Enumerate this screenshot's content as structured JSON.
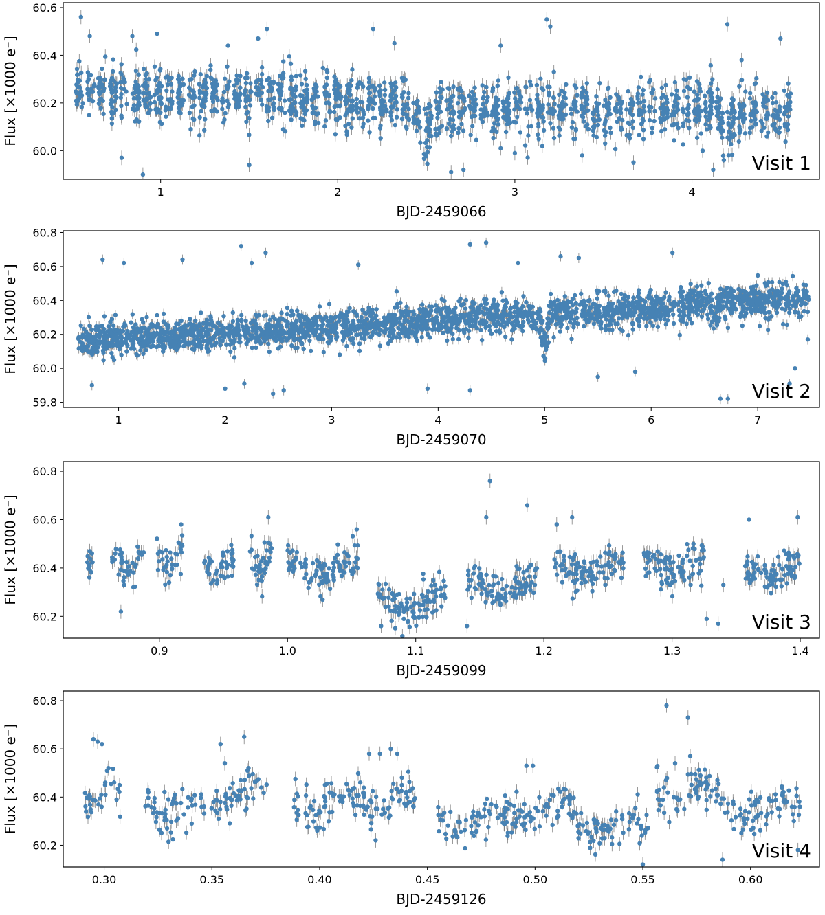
{
  "chart_data": [
    {
      "type": "scatter",
      "title": "",
      "xlabel": "BJD-2459066",
      "ylabel": "Flux [×1000 e⁻]",
      "annotation": "Visit 1",
      "xlim": [
        0.45,
        4.72
      ],
      "ylim": [
        59.88,
        60.62
      ],
      "xticks": [
        1,
        2,
        3,
        4
      ],
      "yticks": [
        60.0,
        60.2,
        60.4,
        60.6
      ],
      "xtick_labels": [
        "1",
        "2",
        "3",
        "4"
      ],
      "ytick_labels": [
        "60.0",
        "60.2",
        "60.4",
        "60.6"
      ],
      "point_color": "#4682b4",
      "errorbar_color": "#808080",
      "x_range": [
        0.52,
        4.58
      ],
      "trend": [
        [
          0.52,
          60.24
        ],
        [
          1.0,
          60.24
        ],
        [
          1.5,
          60.23
        ],
        [
          2.0,
          60.21
        ],
        [
          2.4,
          60.2
        ],
        [
          2.65,
          60.18
        ],
        [
          3.0,
          60.18
        ],
        [
          3.5,
          60.17
        ],
        [
          4.0,
          60.17
        ],
        [
          4.58,
          60.16
        ]
      ],
      "scatter": 0.055,
      "segments": 64,
      "segment_gap_fraction": 0.32,
      "dips": [
        [
          2.5,
          0.1,
          0.08
        ],
        [
          4.2,
          0.08,
          0.06
        ]
      ],
      "outliers": [
        [
          0.55,
          60.56
        ],
        [
          0.6,
          60.48
        ],
        [
          0.84,
          60.48
        ],
        [
          0.98,
          60.49
        ],
        [
          1.38,
          60.44
        ],
        [
          1.55,
          60.47
        ],
        [
          1.6,
          60.51
        ],
        [
          2.2,
          60.51
        ],
        [
          2.32,
          60.45
        ],
        [
          2.92,
          60.44
        ],
        [
          3.18,
          60.55
        ],
        [
          3.2,
          60.52
        ],
        [
          4.2,
          60.53
        ],
        [
          4.28,
          60.38
        ],
        [
          4.5,
          60.47
        ],
        [
          0.78,
          59.97
        ],
        [
          0.9,
          59.9
        ],
        [
          1.5,
          59.94
        ],
        [
          2.64,
          59.91
        ],
        [
          2.71,
          59.92
        ],
        [
          3.0,
          59.99
        ],
        [
          3.38,
          59.98
        ],
        [
          3.67,
          59.95
        ],
        [
          4.12,
          59.92
        ],
        [
          4.18,
          59.96
        ],
        [
          2.92,
          60.01
        ],
        [
          4.06,
          60.0
        ]
      ],
      "n_points": 1700,
      "seed": 11
    },
    {
      "type": "scatter",
      "title": "",
      "xlabel": "BJD-2459070",
      "ylabel": "Flux [×1000 e⁻]",
      "annotation": "Visit 2",
      "xlim": [
        0.48,
        7.58
      ],
      "ylim": [
        59.77,
        60.81
      ],
      "xticks": [
        1,
        2,
        3,
        4,
        5,
        6,
        7
      ],
      "yticks": [
        59.8,
        60.0,
        60.2,
        60.4,
        60.6,
        60.8
      ],
      "xtick_labels": [
        "1",
        "2",
        "3",
        "4",
        "5",
        "6",
        "7"
      ],
      "ytick_labels": [
        "59.8",
        "60.0",
        "60.2",
        "60.4",
        "60.6",
        "60.8"
      ],
      "point_color": "#4682b4",
      "errorbar_color": "#808080",
      "x_range": [
        0.62,
        7.48
      ],
      "trend": [
        [
          0.62,
          60.17
        ],
        [
          1.5,
          60.19
        ],
        [
          2.5,
          60.22
        ],
        [
          3.5,
          60.26
        ],
        [
          4.5,
          60.3
        ],
        [
          5.0,
          60.32
        ],
        [
          5.5,
          60.33
        ],
        [
          6.0,
          60.35
        ],
        [
          6.5,
          60.38
        ],
        [
          7.0,
          60.4
        ],
        [
          7.48,
          60.41
        ]
      ],
      "scatter": 0.05,
      "segments": 0,
      "segment_gap_fraction": 0.0,
      "dips": [
        [
          5.0,
          0.18,
          0.05
        ],
        [
          6.6,
          0.06,
          0.05
        ]
      ],
      "outliers": [
        [
          0.85,
          60.64
        ],
        [
          1.05,
          60.62
        ],
        [
          1.6,
          60.64
        ],
        [
          2.15,
          60.72
        ],
        [
          2.25,
          60.62
        ],
        [
          2.38,
          60.68
        ],
        [
          3.25,
          60.61
        ],
        [
          4.3,
          60.73
        ],
        [
          4.45,
          60.74
        ],
        [
          4.75,
          60.62
        ],
        [
          5.15,
          60.66
        ],
        [
          5.32,
          60.65
        ],
        [
          6.2,
          60.68
        ],
        [
          0.75,
          59.9
        ],
        [
          2.0,
          59.88
        ],
        [
          2.18,
          59.91
        ],
        [
          2.45,
          59.85
        ],
        [
          2.55,
          59.87
        ],
        [
          3.9,
          59.88
        ],
        [
          4.3,
          59.87
        ],
        [
          5.5,
          59.95
        ],
        [
          5.85,
          59.98
        ],
        [
          6.65,
          59.82
        ],
        [
          6.72,
          59.82
        ],
        [
          7.3,
          59.91
        ],
        [
          7.35,
          60.0
        ],
        [
          7.47,
          60.17
        ]
      ],
      "n_points": 2400,
      "seed": 23
    },
    {
      "type": "scatter",
      "title": "",
      "xlabel": "BJD-2459099",
      "ylabel": "Flux [×1000 e⁻]",
      "annotation": "Visit 3",
      "xlim": [
        0.825,
        1.415
      ],
      "ylim": [
        60.11,
        60.84
      ],
      "xticks": [
        0.9,
        1.0,
        1.1,
        1.2,
        1.3,
        1.4
      ],
      "yticks": [
        60.2,
        60.4,
        60.6,
        60.8
      ],
      "xtick_labels": [
        "0.9",
        "1.0",
        "1.1",
        "1.2",
        "1.3",
        "1.4"
      ],
      "ytick_labels": [
        "60.2",
        "60.4",
        "60.6",
        "60.8"
      ],
      "point_color": "#4682b4",
      "errorbar_color": "#808080",
      "clusters": [
        [
          0.843,
          0.848,
          60.43,
          12
        ],
        [
          0.863,
          0.888,
          60.42,
          40
        ],
        [
          0.898,
          0.918,
          60.44,
          34
        ],
        [
          0.935,
          0.958,
          60.42,
          42
        ],
        [
          0.97,
          0.988,
          60.41,
          36
        ],
        [
          1.0,
          1.055,
          60.4,
          95
        ],
        [
          1.07,
          1.123,
          60.26,
          100
        ],
        [
          1.14,
          1.195,
          60.33,
          100
        ],
        [
          1.208,
          1.262,
          60.4,
          100
        ],
        [
          1.278,
          1.325,
          60.41,
          90
        ],
        [
          1.356,
          1.4,
          60.39,
          90
        ]
      ],
      "scatter": 0.055,
      "outliers": [
        [
          1.158,
          60.76
        ],
        [
          1.187,
          60.66
        ],
        [
          1.155,
          60.61
        ],
        [
          1.21,
          60.58
        ],
        [
          1.222,
          60.61
        ],
        [
          1.36,
          60.6
        ],
        [
          1.398,
          60.61
        ],
        [
          0.87,
          60.22
        ],
        [
          1.14,
          60.16
        ],
        [
          1.073,
          60.16
        ],
        [
          1.327,
          60.19
        ],
        [
          1.336,
          60.17
        ],
        [
          1.34,
          60.33
        ],
        [
          1.054,
          60.56
        ],
        [
          0.917,
          60.58
        ],
        [
          0.985,
          60.61
        ]
      ],
      "seed": 37
    },
    {
      "type": "scatter",
      "title": "",
      "xlabel": "BJD-2459126",
      "ylabel": "Flux [×1000 e⁻]",
      "annotation": "Visit 4",
      "xlim": [
        0.281,
        0.632
      ],
      "ylim": [
        60.11,
        60.84
      ],
      "xticks": [
        0.3,
        0.35,
        0.4,
        0.45,
        0.5,
        0.55,
        0.6
      ],
      "yticks": [
        60.2,
        60.4,
        60.6,
        60.8
      ],
      "xtick_labels": [
        "0.30",
        "0.35",
        "0.40",
        "0.45",
        "0.50",
        "0.55",
        "0.60"
      ],
      "ytick_labels": [
        "60.2",
        "60.4",
        "60.6",
        "60.8"
      ],
      "point_color": "#4682b4",
      "errorbar_color": "#808080",
      "clusters": [
        [
          0.29,
          0.308,
          60.4,
          30
        ],
        [
          0.319,
          0.348,
          60.35,
          55
        ],
        [
          0.348,
          0.376,
          60.4,
          55
        ],
        [
          0.388,
          0.42,
          60.38,
          65
        ],
        [
          0.42,
          0.445,
          60.38,
          55
        ],
        [
          0.455,
          0.488,
          60.3,
          65
        ],
        [
          0.488,
          0.52,
          60.34,
          65
        ],
        [
          0.52,
          0.553,
          60.28,
          65
        ],
        [
          0.556,
          0.585,
          60.42,
          60
        ],
        [
          0.585,
          0.623,
          60.35,
          75
        ]
      ],
      "scatter": 0.06,
      "outliers": [
        [
          0.295,
          60.64
        ],
        [
          0.297,
          60.63
        ],
        [
          0.299,
          60.62
        ],
        [
          0.302,
          60.52
        ],
        [
          0.354,
          60.62
        ],
        [
          0.356,
          60.54
        ],
        [
          0.365,
          60.65
        ],
        [
          0.367,
          60.52
        ],
        [
          0.423,
          60.58
        ],
        [
          0.428,
          60.58
        ],
        [
          0.433,
          60.6
        ],
        [
          0.436,
          60.58
        ],
        [
          0.561,
          60.78
        ],
        [
          0.571,
          60.73
        ],
        [
          0.572,
          60.57
        ],
        [
          0.565,
          60.54
        ],
        [
          0.55,
          60.12
        ],
        [
          0.587,
          60.14
        ],
        [
          0.622,
          60.18
        ],
        [
          0.426,
          60.22
        ],
        [
          0.496,
          60.53
        ],
        [
          0.499,
          60.53
        ]
      ],
      "seed": 53
    }
  ]
}
